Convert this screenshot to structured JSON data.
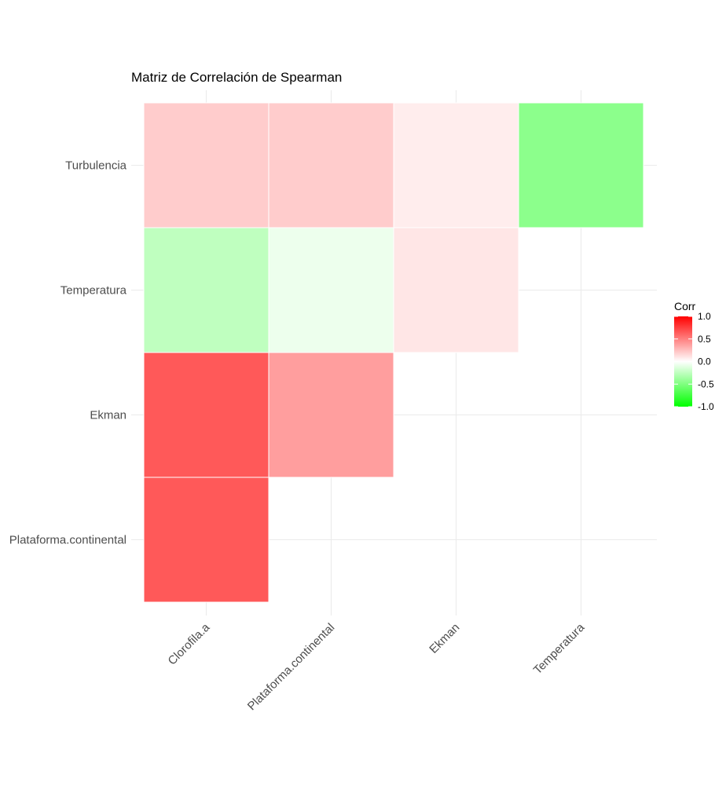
{
  "chart_data": {
    "type": "heatmap",
    "title": "Matriz de Correlación de Spearman",
    "x_categories": [
      "Clorofila.a",
      "Plataforma.continental",
      "Ekman",
      "Temperatura"
    ],
    "y_categories": [
      "Plataforma.continental",
      "Ekman",
      "Temperatura",
      "Turbulencia"
    ],
    "cells": [
      {
        "x": "Clorofila.a",
        "y": "Plataforma.continental",
        "value": 0.65
      },
      {
        "x": "Clorofila.a",
        "y": "Ekman",
        "value": 0.65
      },
      {
        "x": "Plataforma.continental",
        "y": "Ekman",
        "value": 0.38
      },
      {
        "x": "Clorofila.a",
        "y": "Temperatura",
        "value": -0.25
      },
      {
        "x": "Plataforma.continental",
        "y": "Temperatura",
        "value": -0.07
      },
      {
        "x": "Ekman",
        "y": "Temperatura",
        "value": 0.1
      },
      {
        "x": "Clorofila.a",
        "y": "Turbulencia",
        "value": 0.2
      },
      {
        "x": "Plataforma.continental",
        "y": "Turbulencia",
        "value": 0.2
      },
      {
        "x": "Ekman",
        "y": "Turbulencia",
        "value": 0.07
      },
      {
        "x": "Temperatura",
        "y": "Turbulencia",
        "value": -0.45
      }
    ],
    "legend": {
      "title": "Corr",
      "ticks": [
        1.0,
        0.5,
        0.0,
        -0.5,
        -1.0
      ],
      "tick_labels": [
        "1.0",
        "0.5",
        "0.0",
        "-0.5",
        "-1.0"
      ],
      "placement": "right"
    },
    "color_scale": {
      "low": "#00ff00",
      "mid": "#ffffff",
      "high": "#ff0000",
      "limits": [
        -1,
        1
      ]
    },
    "grid": true
  }
}
